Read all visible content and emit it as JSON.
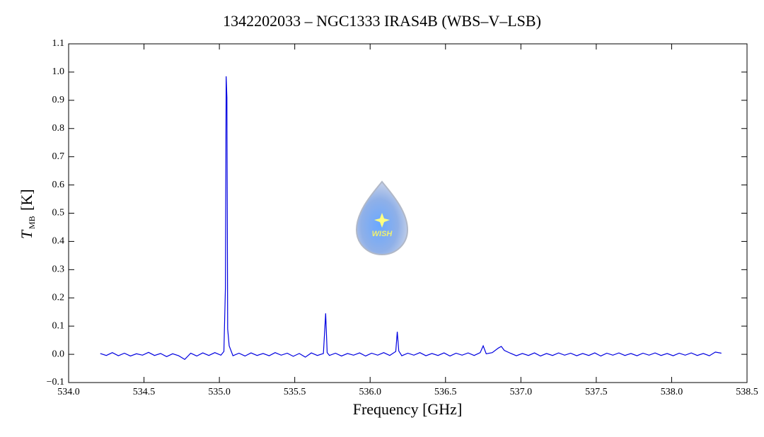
{
  "chart_data": {
    "type": "line",
    "title": "1342202033 – NGC1333 IRAS4B (WBS–V–LSB)",
    "xlabel": "Frequency [GHz]",
    "ylabel": {
      "symbol": "T",
      "subscript": "MB",
      "unit": "[K]"
    },
    "logo_text": "WISH",
    "xlim": [
      534.0,
      538.5
    ],
    "ylim": [
      -0.1,
      1.1
    ],
    "xticks": [
      {
        "value": 534,
        "label": "534.0"
      },
      534.5,
      {
        "value": 535,
        "label": "535.0"
      },
      535.5,
      {
        "value": 536,
        "label": "536.0"
      },
      536.5,
      {
        "value": 537,
        "label": "537.0"
      },
      537.5,
      {
        "value": 538,
        "label": "538.0"
      },
      538.5
    ],
    "yticks": [
      {
        "value": -0.1,
        "label": "−0.1"
      },
      {
        "value": 0,
        "label": "0.0"
      },
      0.1,
      0.2,
      0.3,
      0.4,
      0.5,
      0.6,
      0.7,
      0.8,
      0.9,
      {
        "value": 1,
        "label": "1.0"
      },
      1.1
    ],
    "series": [
      {
        "color": "#0000e0",
        "x": [
          534.21,
          534.25,
          534.29,
          534.33,
          534.37,
          534.41,
          534.45,
          534.49,
          534.53,
          534.57,
          534.61,
          534.65,
          534.69,
          534.73,
          534.77,
          534.81,
          534.85,
          534.89,
          534.93,
          534.97,
          535.01,
          535.03,
          535.04,
          535.045,
          535.05,
          535.055,
          535.065,
          535.09,
          535.13,
          535.17,
          535.21,
          535.25,
          535.29,
          535.33,
          535.37,
          535.41,
          535.45,
          535.49,
          535.53,
          535.57,
          535.61,
          535.65,
          535.69,
          535.705,
          535.715,
          535.73,
          535.77,
          535.81,
          535.85,
          535.89,
          535.93,
          535.97,
          536.01,
          536.05,
          536.09,
          536.13,
          536.17,
          536.18,
          536.19,
          536.21,
          536.25,
          536.29,
          536.33,
          536.37,
          536.41,
          536.45,
          536.49,
          536.53,
          536.57,
          536.61,
          536.65,
          536.69,
          536.73,
          536.75,
          536.77,
          536.81,
          536.85,
          536.87,
          536.89,
          536.93,
          536.97,
          537.01,
          537.05,
          537.09,
          537.13,
          537.17,
          537.21,
          537.25,
          537.29,
          537.33,
          537.37,
          537.41,
          537.45,
          537.49,
          537.53,
          537.57,
          537.61,
          537.65,
          537.69,
          537.73,
          537.77,
          537.81,
          537.85,
          537.89,
          537.93,
          537.97,
          538.01,
          538.05,
          538.09,
          538.13,
          538.17,
          538.21,
          538.25,
          538.29,
          538.33
        ],
        "values": [
          0.003,
          -0.004,
          0.006,
          -0.005,
          0.004,
          -0.006,
          0.002,
          -0.003,
          0.007,
          -0.004,
          0.003,
          -0.008,
          0.002,
          -0.005,
          -0.018,
          0.004,
          -0.006,
          0.005,
          -0.004,
          0.006,
          -0.003,
          0.01,
          0.235,
          0.985,
          0.91,
          0.09,
          0.03,
          -0.005,
          0.004,
          -0.006,
          0.005,
          -0.004,
          0.003,
          -0.005,
          0.006,
          -0.003,
          0.004,
          -0.007,
          0.003,
          -0.01,
          0.005,
          -0.004,
          0.003,
          0.145,
          0.006,
          -0.004,
          0.004,
          -0.006,
          0.003,
          -0.003,
          0.005,
          -0.006,
          0.004,
          -0.003,
          0.006,
          -0.004,
          0.01,
          0.08,
          0.012,
          -0.005,
          0.004,
          -0.003,
          0.006,
          -0.005,
          0.003,
          -0.004,
          0.005,
          -0.006,
          0.004,
          -0.003,
          0.005,
          -0.004,
          0.006,
          0.03,
          0.002,
          0.006,
          0.022,
          0.028,
          0.014,
          0.004,
          -0.005,
          0.003,
          -0.004,
          0.005,
          -0.006,
          0.003,
          -0.004,
          0.005,
          -0.003,
          0.004,
          -0.005,
          0.003,
          -0.004,
          0.005,
          -0.006,
          0.004,
          -0.003,
          0.005,
          -0.004,
          0.003,
          -0.005,
          0.004,
          -0.003,
          0.005,
          -0.004,
          0.003,
          -0.005,
          0.004,
          -0.003,
          0.005,
          -0.004,
          0.003,
          -0.005,
          0.008,
          0.004
        ]
      }
    ]
  }
}
